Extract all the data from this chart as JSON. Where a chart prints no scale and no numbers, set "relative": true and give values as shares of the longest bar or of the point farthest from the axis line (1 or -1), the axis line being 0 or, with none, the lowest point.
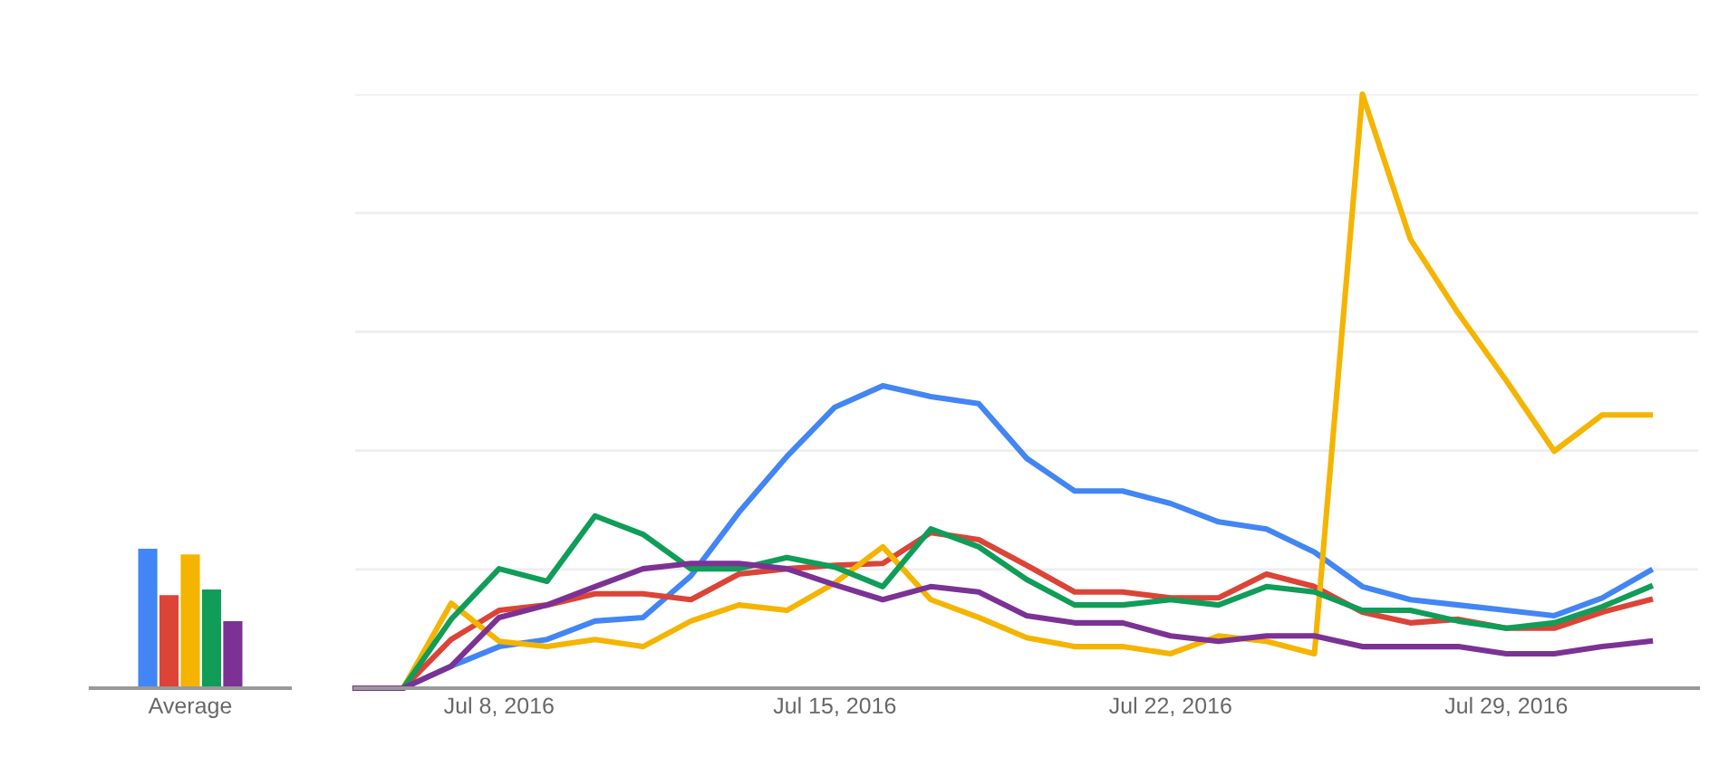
{
  "chart_data": [
    {
      "type": "bar",
      "relative": true,
      "categories": [
        "Average"
      ],
      "grid": false,
      "tick_labels": "x",
      "series": [
        {
          "color": "#4285f4",
          "values": [
            1
          ]
        },
        {
          "color": "#db4437",
          "values": [
            0.667
          ]
        },
        {
          "color": "#f4b400",
          "values": [
            0.96
          ]
        },
        {
          "color": "#0f9d58",
          "values": [
            0.707
          ]
        },
        {
          "color": "#7b3294",
          "values": [
            0.48
          ]
        }
      ]
    },
    {
      "type": "line",
      "relative": true,
      "grid": "y",
      "tick_labels": "x",
      "line_style": "solid",
      "x": [
        "2016-07-05",
        "2016-07-06",
        "2016-07-07",
        "2016-07-08",
        "2016-07-09",
        "2016-07-10",
        "2016-07-11",
        "2016-07-12",
        "2016-07-13",
        "2016-07-14",
        "2016-07-15",
        "2016-07-16",
        "2016-07-17",
        "2016-07-18",
        "2016-07-19",
        "2016-07-20",
        "2016-07-21",
        "2016-07-22",
        "2016-07-23",
        "2016-07-24",
        "2016-07-25",
        "2016-07-26",
        "2016-07-27",
        "2016-07-28",
        "2016-07-29",
        "2016-07-30",
        "2016-07-31",
        "2016-08-01"
      ],
      "xlim": [
        "2016-07-05",
        "2016-08-02"
      ],
      "xticks": [
        {
          "value": "2016-07-08",
          "label": "Jul 8, 2016"
        },
        {
          "value": "2016-07-15",
          "label": "Jul 15, 2016"
        },
        {
          "value": "2016-07-22",
          "label": "Jul 22, 2016"
        },
        {
          "value": "2016-07-29",
          "label": "Jul 29, 2016"
        }
      ],
      "series": [
        {
          "color": "#4285f4",
          "values": [
            0,
            0,
            0.037,
            0.07,
            0.082,
            0.113,
            0.119,
            0.189,
            0.296,
            0.39,
            0.473,
            0.509,
            0.491,
            0.479,
            0.387,
            0.332,
            0.332,
            0.311,
            0.28,
            0.268,
            0.229,
            0.171,
            0.149,
            0.14,
            0.131,
            0.122,
            0.152,
            0.198
          ]
        },
        {
          "color": "#db4437",
          "values": [
            0,
            0,
            0.082,
            0.131,
            0.14,
            0.159,
            0.159,
            0.149,
            0.192,
            0.201,
            0.207,
            0.21,
            0.262,
            0.25,
            0.207,
            0.162,
            0.162,
            0.152,
            0.152,
            0.192,
            0.171,
            0.128,
            0.11,
            0.116,
            0.101,
            0.101,
            0.128,
            0.149
          ]
        },
        {
          "color": "#f4b400",
          "values": [
            0,
            0,
            0.143,
            0.079,
            0.07,
            0.082,
            0.07,
            0.113,
            0.14,
            0.131,
            0.177,
            0.238,
            0.149,
            0.119,
            0.085,
            0.07,
            0.07,
            0.058,
            0.088,
            0.079,
            0.058,
            1,
            0.756,
            0.631,
            0.518,
            0.399,
            0.46,
            0.46
          ]
        },
        {
          "color": "#0f9d58",
          "values": [
            0,
            0,
            0.116,
            0.201,
            0.18,
            0.29,
            0.259,
            0.201,
            0.201,
            0.22,
            0.204,
            0.171,
            0.268,
            0.238,
            0.183,
            0.14,
            0.14,
            0.149,
            0.14,
            0.171,
            0.162,
            0.131,
            0.131,
            0.113,
            0.101,
            0.11,
            0.137,
            0.171
          ]
        },
        {
          "color": "#7b3294",
          "values": [
            0,
            0,
            0.037,
            0.119,
            0.14,
            0.171,
            0.201,
            0.21,
            0.21,
            0.201,
            0.174,
            0.149,
            0.171,
            0.162,
            0.122,
            0.11,
            0.11,
            0.088,
            0.079,
            0.088,
            0.088,
            0.07,
            0.07,
            0.07,
            0.058,
            0.058,
            0.07,
            0.079
          ]
        }
      ]
    }
  ]
}
